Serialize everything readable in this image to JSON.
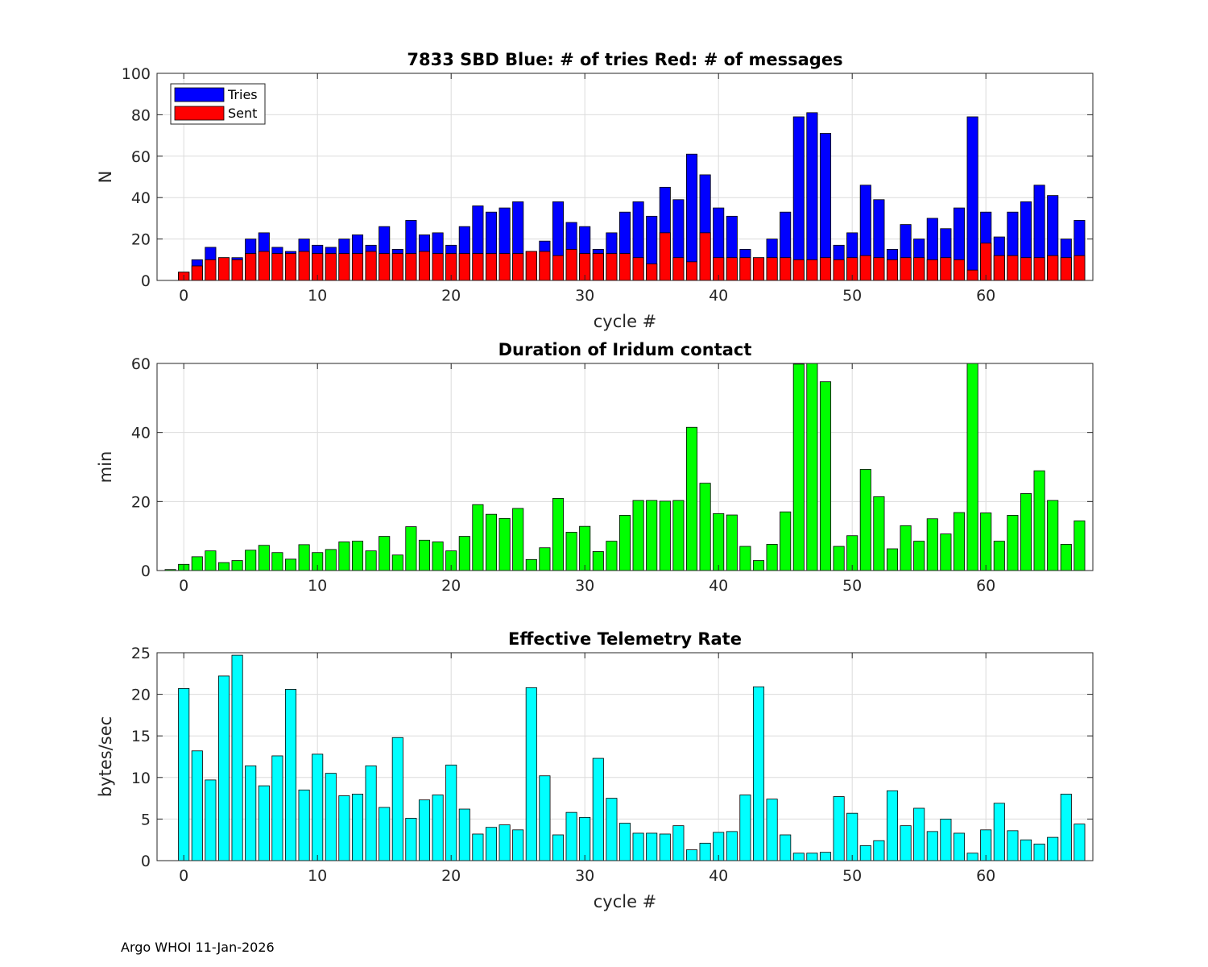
{
  "footer": "Argo WHOI 11-Jan-2026",
  "chart_data": [
    {
      "type": "bar",
      "title": "7833 SBD  Blue: # of tries   Red: # of messages",
      "xlabel": "cycle #",
      "ylabel": "N",
      "xlim": [
        -2,
        68
      ],
      "ylim": [
        0,
        100
      ],
      "xticks": [
        0,
        10,
        20,
        30,
        40,
        50,
        60
      ],
      "yticks": [
        0,
        20,
        40,
        60,
        80,
        100
      ],
      "grid": true,
      "legend": "top-left",
      "x": [
        0,
        1,
        2,
        3,
        4,
        5,
        6,
        7,
        8,
        9,
        10,
        11,
        12,
        13,
        14,
        15,
        16,
        17,
        18,
        19,
        20,
        21,
        22,
        23,
        24,
        25,
        26,
        27,
        28,
        29,
        30,
        31,
        32,
        33,
        34,
        35,
        36,
        37,
        38,
        39,
        40,
        41,
        42,
        43,
        44,
        45,
        46,
        47,
        48,
        49,
        50,
        51,
        52,
        53,
        54,
        55,
        56,
        57,
        58,
        59,
        60,
        61,
        62,
        63,
        64,
        65,
        66,
        67
      ],
      "series": [
        {
          "name": "Tries",
          "color": "#0000ff",
          "values": [
            4,
            10,
            16,
            11,
            11,
            20,
            23,
            16,
            14,
            20,
            17,
            16,
            20,
            22,
            17,
            26,
            15,
            29,
            22,
            23,
            17,
            26,
            36,
            33,
            35,
            38,
            14,
            19,
            38,
            28,
            26,
            15,
            23,
            33,
            38,
            31,
            45,
            39,
            61,
            51,
            35,
            31,
            15,
            11,
            20,
            33,
            79,
            81,
            71,
            17,
            23,
            46,
            39,
            15,
            27,
            20,
            30,
            25,
            35,
            79,
            33,
            21,
            33,
            38,
            46,
            41,
            20,
            29
          ]
        },
        {
          "name": "Sent",
          "color": "#ff0000",
          "values": [
            4,
            7,
            10,
            11,
            10,
            13,
            14,
            13,
            13,
            14,
            13,
            13,
            13,
            13,
            14,
            13,
            13,
            13,
            14,
            13,
            13,
            13,
            13,
            13,
            13,
            13,
            14,
            14,
            12,
            15,
            13,
            13,
            13,
            13,
            11,
            8,
            23,
            11,
            9,
            23,
            11,
            11,
            11,
            11,
            11,
            11,
            10,
            10,
            11,
            10,
            11,
            12,
            11,
            10,
            11,
            11,
            10,
            11,
            10,
            5,
            18,
            12,
            12,
            11,
            11,
            12,
            11,
            12
          ]
        }
      ]
    },
    {
      "type": "bar",
      "title": "Duration of Iridum contact",
      "xlabel": "",
      "ylabel": "min",
      "xlim": [
        -2,
        68
      ],
      "ylim": [
        0,
        60
      ],
      "xticks": [
        0,
        10,
        20,
        30,
        40,
        50,
        60
      ],
      "yticks": [
        0,
        20,
        40,
        60
      ],
      "grid": true,
      "x": [
        -1,
        0,
        1,
        2,
        3,
        4,
        5,
        6,
        7,
        8,
        9,
        10,
        11,
        12,
        13,
        14,
        15,
        16,
        17,
        18,
        19,
        20,
        21,
        22,
        23,
        24,
        25,
        26,
        27,
        28,
        29,
        30,
        31,
        32,
        33,
        34,
        35,
        36,
        37,
        38,
        39,
        40,
        41,
        42,
        43,
        44,
        45,
        46,
        47,
        48,
        49,
        50,
        51,
        52,
        53,
        54,
        55,
        56,
        57,
        58,
        59,
        60,
        61,
        62,
        63,
        64,
        65,
        66,
        67
      ],
      "series": [
        {
          "name": "",
          "color": "#00ff00",
          "values": [
            0.3,
            1.8,
            4.0,
            5.7,
            2.3,
            2.9,
            5.9,
            7.3,
            5.2,
            3.3,
            7.5,
            5.2,
            6.1,
            8.3,
            8.5,
            5.7,
            9.9,
            4.5,
            12.7,
            8.8,
            8.3,
            5.7,
            9.9,
            19.1,
            16.3,
            15.1,
            18.0,
            3.2,
            6.6,
            20.9,
            11.1,
            12.8,
            5.5,
            8.5,
            16.0,
            20.3,
            20.3,
            20.1,
            20.3,
            41.5,
            25.3,
            16.5,
            16.1,
            7.0,
            2.9,
            7.6,
            17.0,
            59.8,
            60,
            54.7,
            7.0,
            10.1,
            29.3,
            21.4,
            6.3,
            13.0,
            8.5,
            15.0,
            10.6,
            16.8,
            60,
            16.7,
            8.5,
            16.0,
            22.3,
            28.9,
            20.3,
            7.6,
            14.4
          ]
        }
      ]
    },
    {
      "type": "bar",
      "title": "Effective Telemetry Rate",
      "xlabel": "cycle #",
      "ylabel": "bytes/sec",
      "xlim": [
        -2,
        68
      ],
      "ylim": [
        0,
        25
      ],
      "xticks": [
        0,
        10,
        20,
        30,
        40,
        50,
        60
      ],
      "yticks": [
        0,
        5,
        10,
        15,
        20,
        25
      ],
      "grid": true,
      "x": [
        0,
        1,
        2,
        3,
        4,
        5,
        6,
        7,
        8,
        9,
        10,
        11,
        12,
        13,
        14,
        15,
        16,
        17,
        18,
        19,
        20,
        21,
        22,
        23,
        24,
        25,
        26,
        27,
        28,
        29,
        30,
        31,
        32,
        33,
        34,
        35,
        36,
        37,
        38,
        39,
        40,
        41,
        42,
        43,
        44,
        45,
        46,
        47,
        48,
        49,
        50,
        51,
        52,
        53,
        54,
        55,
        56,
        57,
        58,
        59,
        60,
        61,
        62,
        63,
        64,
        65,
        66,
        67
      ],
      "series": [
        {
          "name": "",
          "color": "#00ffff",
          "values": [
            20.7,
            13.2,
            9.7,
            22.2,
            24.7,
            11.4,
            9.0,
            12.6,
            20.6,
            8.5,
            12.8,
            10.5,
            7.8,
            8.0,
            11.4,
            6.4,
            14.8,
            5.1,
            7.3,
            7.9,
            11.5,
            6.2,
            3.2,
            4.0,
            4.3,
            3.7,
            20.8,
            10.2,
            3.1,
            5.8,
            5.2,
            12.3,
            7.5,
            4.5,
            3.3,
            3.3,
            3.2,
            4.2,
            1.3,
            2.1,
            3.4,
            3.5,
            7.9,
            20.9,
            7.4,
            3.1,
            0.9,
            0.9,
            1.0,
            7.7,
            5.7,
            1.8,
            2.4,
            8.4,
            4.2,
            6.3,
            3.5,
            5.0,
            3.3,
            0.9,
            3.7,
            6.9,
            3.6,
            2.5,
            2.0,
            2.8,
            8.0,
            4.4
          ]
        }
      ]
    }
  ]
}
